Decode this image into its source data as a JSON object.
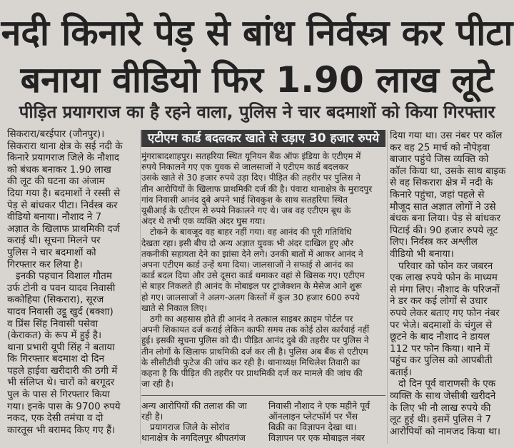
{
  "headline": {
    "line1": "नदी किनारे पेड़ से बांध निर्वस्त्र कर पीटा",
    "line2": "बनाया वीडियो फिर 1.90 लाख लूटे",
    "subheadline": "पीड़ित प्रयागराज का है रहने वाला, पुलिस ने चार बदमाशों को किया गिरफ्तार"
  },
  "col1": {
    "lines": [
      "सिकरारा/बरईपार (जौनपुर)।",
      "सिकरारा थाना क्षेत्र के सई नदी के",
      "किनारे प्रयागराज जिले के नौशाद",
      "को बंधक बनाकर 1.90 लाख",
      "की लूट की घटना का अंजाम",
      "दिया गया है। बदमाशों ने रस्सी से",
      "पेड़ से बांधकर पीटा। निर्वस्त्र कर",
      "वीडियो बनाया। नौशाद ने 7",
      "अज्ञात के खिलाफ प्राथमिकी दर्ज",
      "कराई थी। सूचना मिलने पर",
      "पुलिस ने चार बदमाशों को",
      "गिरफ्तार कर लिया है।",
      "इनकी पहचान विशाल गौतम",
      "उर्फ टोनी व पवन यादव निवासी",
      "ककोहिया (सिकरारा), सूरज",
      "यादव निवासी उट्ठू खुर्द (बक्शा)",
      "व प्रिंस सिंह निवासी पसेवा",
      "(केराकत) के रूप में हुई है।",
      "थाना प्रभारी यूपी सिंह ने बताया",
      "कि गिरफ्तार बदमाश दो दिन",
      "पहले हाईवा खरीदारी की ठगी में",
      "भी संलिप्त थे। चारों को बरगूदर",
      "पुल के पास से गिरफ्तार किया",
      "गया। इनके पास के 9700 रुपये",
      "नकद, एक देसी तमंचा व दो",
      "कारतूस भी बरामद किए गए हैं।"
    ]
  },
  "col2": {
    "box_heading": "एटीएम कार्ड बदलकर खाते से उड़ाए 30 हजार रुपये",
    "lines": [
      "मुंगराबादशाहपुर। सतहरिया स्थित यूनियन बैंक ऑफ इंडिया के एटीएम में",
      "रुपये निकालने गए एक युवक से जालसाजों ने एटीएम कार्ड बदलकर",
      "उसके खाते से 30 हजार रुपये उड़ा दिए। पीड़ित की तहरीर पर पुलिस ने",
      "तीन आरोपियों के खिलाफ प्राथमिकी दर्ज की है। पंवारा थानाक्षेत्र के मुरादपुर",
      "गांव निवासी आनंद दुबे अपने भाई शिवकुश के साथ सतहरिया स्थित",
      "यूबीआई के एटीएम से रुपये निकालने गए थे। जब वह एटीएम बूथ के",
      "अंदर थे तभी एक व्यक्ति अंदर घुस गया।",
      "टोकने के बावजूद वह बाहर नहीं गया। वह आनंद की पूरी गतिविधि",
      "देखता रहा। इसी बीच दो अन्य अज्ञात युवक भी अंदर दाखिल हुए और",
      "तकनीकी सहायता देने का झांसा देने लगे। उनकी बातों में आकर आनंद ने",
      "अपना एटीएम कार्ड उन्हें थमा दिया। जालसाजों ने सफाई से आनंद का",
      "कार्ड बदल दिया और उसे दूसरा कार्ड थमाकर वहां से खिसक गए। एटीएम",
      "से बाहर निकलते ही आनंद के मोबाइल पर ट्रांजेक्शन के मेसेज आने शुरू",
      "हो गए। जालसाजों ने अलग-अलग किस्तों में कुल 30 हजार 600 रुपये",
      "खाते से निकाल लिए।",
      "ठगी का अहसास होते ही आनंद ने तत्काल साइबर क्राइम पोर्टल पर",
      "अपनी शिकायत दर्ज कराई लेकिन काफी समय तक कोई ठोस कार्रवाई नहीं",
      "हुई। इसकी सूचना पुलिस को दी। पीड़ित आनंद दुबे की तहरीर पर पुलिस ने",
      "तीन लोगों के खिलाफ प्राथमिकी दर्ज कर ली है। पुलिस अब बैंक से एटीएम",
      "के सीसीटीवी फुटेज की जांच कर रही है। थानाध्यक्ष मिथिलेश तिवारी का",
      "कहना है कि पीड़ित की तहरीर पर प्राथमिकी दर्ज कर मामले की जांच की",
      "जा रही है।"
    ],
    "bottom_left": [
      "अन्य आरोपियों की तलाश की जा",
      "रही है।",
      "प्रयागराज जिले के सोरांव",
      "थानाक्षेत्र के नगदिलपुर श्रीपतगंज"
    ],
    "bottom_right": [
      "निवासी नौशाद ने एक महीने पूर्व",
      "ऑनलाइन प्लेटफॉर्म पर भैंस",
      "बिक्री का विज्ञापन देखा था।",
      "विज्ञापन पर एक मोबाइल नंबर"
    ]
  },
  "col3": {
    "lines": [
      "दिया गया था। उस नंबर पर कॉल",
      "कर वह 25 मार्च को नौपेड़वा",
      "बाजार पहुंचे जिस व्यक्ति को",
      "कॉल किया था, उसके साथ बाइक",
      "से वह सिकरारा क्षेत्र में नदी के",
      "किनारे पहुंचा, जहां पहले से",
      "मौजूद सात अज्ञात लोगों ने उसे",
      "बंधक बना लिया। पेड़ से बांधकर",
      "पिटाई की। 90 हजार रुपये लूट",
      "लिए। निर्वस्त्र कर अश्लील",
      "वीडियो भी बनाया।",
      "परिवार को फोन कर जबरन",
      "एक लाख रुपये फोन के माध्यम",
      "से मंगा लिए। नौशाद के परिजनों",
      "ने डर कर कई लोगों से उधार",
      "रुपये लेकर बताए गए फोन नंबर",
      "पर भेजे। बदमाशों के चंगुल से",
      "छूटने के बाद नौशाद ने डायल",
      "112 पर फोन किया। थाने में",
      "पहुंच कर पुलिस को आपबीती",
      "बताई।",
      "दो दिन पूर्व वाराणसी के एक",
      "व्यक्ति के साथ जेसीबी खरीदने",
      "के लिए भी नौ लाख रुपये की",
      "लूट हुई थी। इसमें पुलिस ने 7",
      "आरोपियों को नामजद किया था।"
    ]
  }
}
